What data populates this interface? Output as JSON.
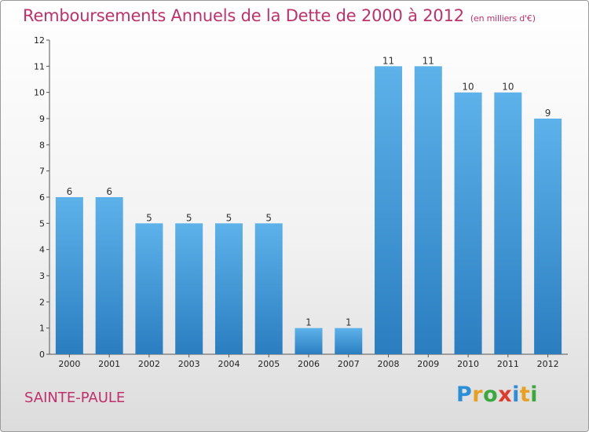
{
  "title": "Remboursements Annuels de la Dette de 2000 à 2012",
  "subtitle": "(en milliers d'€)",
  "city": "SAINTE-PAULE",
  "logo": {
    "letters": [
      "P",
      "r",
      "o",
      "x",
      "i",
      "t",
      "i"
    ],
    "colors": [
      "#2a8fd8",
      "#e8a020",
      "#3aa83a",
      "#e03a2a",
      "#2a8fd8",
      "#e8a020",
      "#3aa83a"
    ]
  },
  "colors": {
    "bar_top": "#5db2ea",
    "bar_bottom": "#2a7ec0",
    "title": "#c0306a"
  },
  "chart_data": {
    "type": "bar",
    "title": "Remboursements Annuels de la Dette de 2000 à 2012",
    "subtitle": "(en milliers d'€)",
    "categories": [
      "2000",
      "2001",
      "2002",
      "2003",
      "2004",
      "2005",
      "2006",
      "2007",
      "2008",
      "2009",
      "2010",
      "2011",
      "2012"
    ],
    "values": [
      6,
      6,
      5,
      5,
      5,
      5,
      1,
      1,
      11,
      11,
      10,
      10,
      9
    ],
    "ylim": [
      0,
      12
    ],
    "yticks": [
      0,
      1,
      2,
      3,
      4,
      5,
      6,
      7,
      8,
      9,
      10,
      11,
      12
    ],
    "grid": false,
    "legend": "none"
  }
}
